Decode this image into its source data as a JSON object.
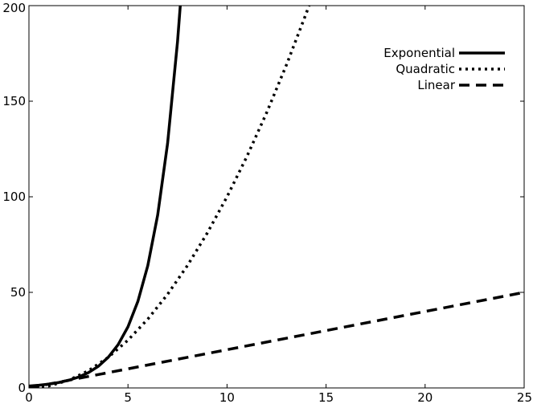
{
  "chart_data": {
    "type": "line",
    "title": "",
    "xlabel": "",
    "ylabel": "",
    "xlim": [
      0,
      25
    ],
    "ylim": [
      0,
      200
    ],
    "xticks": [
      0,
      5,
      10,
      15,
      20,
      25
    ],
    "yticks": [
      0,
      50,
      100,
      150,
      200
    ],
    "grid": false,
    "legend_position": "top-right",
    "series": [
      {
        "name": "Exponential",
        "style": "solid",
        "color": "#000000",
        "x": [
          0,
          0.5,
          1,
          1.5,
          2,
          2.5,
          3,
          3.5,
          4,
          4.5,
          5,
          5.5,
          6,
          6.5,
          7,
          7.5,
          7.64
        ],
        "y": [
          1,
          1.41,
          2,
          2.83,
          4,
          5.66,
          8,
          11.3,
          16,
          22.6,
          32,
          45.3,
          64,
          90.5,
          128,
          181,
          200
        ]
      },
      {
        "name": "Quadratic",
        "style": "dotted",
        "color": "#000000",
        "x": [
          0,
          1,
          2,
          3,
          4,
          5,
          6,
          7,
          8,
          9,
          10,
          11,
          12,
          13,
          14,
          14.14
        ],
        "y": [
          0,
          1,
          4,
          9,
          16,
          25,
          36,
          49,
          64,
          81,
          100,
          121,
          144,
          169,
          196,
          200
        ]
      },
      {
        "name": "Linear",
        "style": "dashed",
        "color": "#000000",
        "x": [
          0,
          5,
          10,
          15,
          20,
          25
        ],
        "y": [
          0,
          10,
          20,
          30,
          40,
          50
        ]
      }
    ]
  }
}
